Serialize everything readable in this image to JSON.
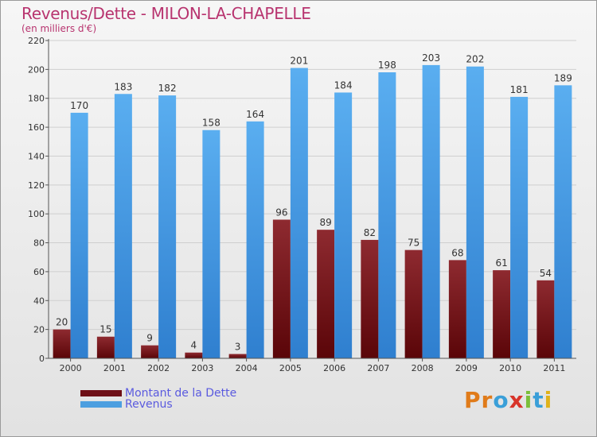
{
  "header": {
    "title": "Revenus/Dette - MILON-LA-CHAPELLE",
    "subtitle": "(en milliers d'€)"
  },
  "chart_data": {
    "type": "bar",
    "title": "Revenus/Dette - MILON-LA-CHAPELLE",
    "subtitle": "(en milliers d'€)",
    "categories": [
      "2000",
      "2001",
      "2002",
      "2003",
      "2004",
      "2005",
      "2006",
      "2007",
      "2008",
      "2009",
      "2010",
      "2011"
    ],
    "series": [
      {
        "name": "Montant de la Dette",
        "values": [
          20,
          15,
          9,
          4,
          3,
          96,
          89,
          82,
          75,
          68,
          61,
          54
        ],
        "color": "#6e0f16"
      },
      {
        "name": "Revenus",
        "values": [
          170,
          183,
          182,
          158,
          164,
          201,
          184,
          198,
          203,
          202,
          181,
          189
        ],
        "color": "#4d9fe0"
      }
    ],
    "yticks": [
      "0",
      "20",
      "40",
      "60",
      "80",
      "100",
      "120",
      "140",
      "160",
      "180",
      "200",
      "220"
    ],
    "ylim": [
      0,
      220
    ],
    "grid": "horizontal",
    "legend": "bottom-left"
  },
  "legend": [
    {
      "label": "Montant de la Dette",
      "color": "#6e0f16"
    },
    {
      "label": "Revenus",
      "color": "#4d9fe0"
    }
  ],
  "logo": {
    "text": "Proxiti",
    "letters": [
      "P",
      "r",
      "o",
      "x",
      "i",
      "t",
      "i"
    ]
  }
}
